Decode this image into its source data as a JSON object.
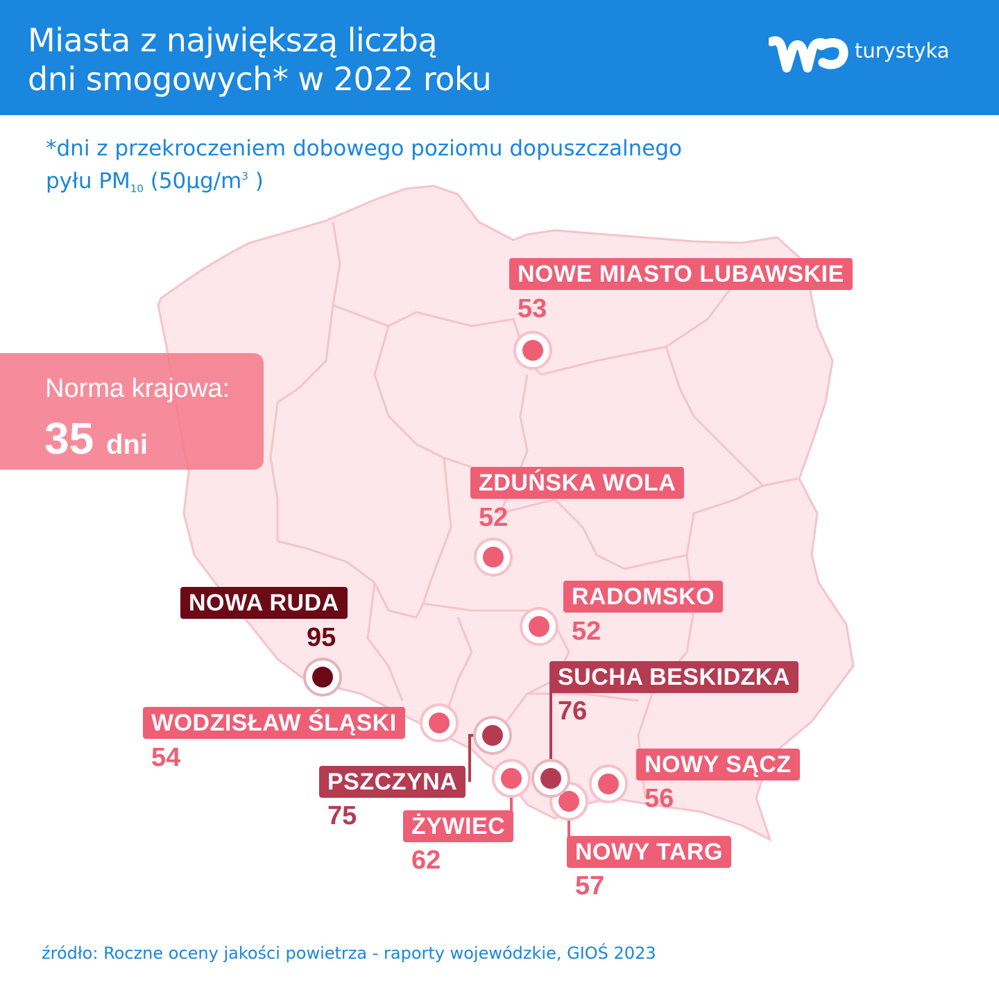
{
  "header": {
    "title_line1": "Miasta z największą liczbą",
    "title_line2": "dni smogowych* w 2022 roku",
    "brand_text": "turystyka"
  },
  "subtitle": {
    "line1": "*dni z przekroczeniem dobowego poziomu dopuszczalnego",
    "line2_prefix": "pyłu PM",
    "line2_sub": "10",
    "line2_mid": " (50μg/m",
    "line2_sup": "3",
    "line2_end": " )"
  },
  "norma": {
    "label": "Norma krajowa:",
    "value": "35",
    "unit": "dni"
  },
  "cities": [
    {
      "name": "NOWE MIASTO LUBAWSKIE",
      "days": "53"
    },
    {
      "name": "ZDUŃSKA WOLA",
      "days": "52"
    },
    {
      "name": "RADOMSKO",
      "days": "52"
    },
    {
      "name": "NOWA RUDA",
      "days": "95"
    },
    {
      "name": "SUCHA BESKIDZKA",
      "days": "76"
    },
    {
      "name": "WODZISŁAW ŚLĄSKI",
      "days": "54"
    },
    {
      "name": "PSZCZYNA",
      "days": "75"
    },
    {
      "name": "NOWY SĄCZ",
      "days": "56"
    },
    {
      "name": "ŻYWIEC",
      "days": "62"
    },
    {
      "name": "NOWY TARG",
      "days": "57"
    }
  ],
  "colors": {
    "header": "#1a86de",
    "light": "#ee5e75",
    "medium": "#b43c52",
    "dark": "#6b0a16",
    "map_fill": "#fde7ea",
    "map_line": "#f6c3cb"
  },
  "source": "źródło: Roczne oceny jakości powietrza - raporty wojewódzkie, GIOŚ 2023"
}
